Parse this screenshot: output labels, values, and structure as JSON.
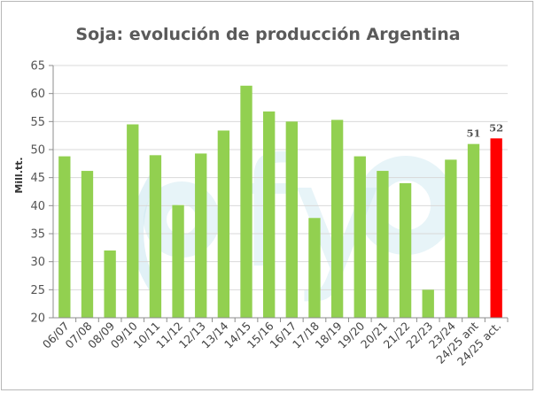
{
  "chart_data": {
    "type": "bar",
    "title": "Soja: evolución de producción Argentina",
    "ylabel": "Mill.tt.",
    "xlabel": "",
    "ylim": [
      20,
      65
    ],
    "yticks": [
      20,
      25,
      30,
      35,
      40,
      45,
      50,
      55,
      60,
      65
    ],
    "grid": true,
    "legend": "none",
    "watermark": "OFyO",
    "categories": [
      "06/07",
      "07/08",
      "08/09",
      "09/10",
      "10/11",
      "11/12",
      "12/13",
      "13/14",
      "14/15",
      "15/16",
      "16/17",
      "17/18",
      "18/19",
      "19/20",
      "20/21",
      "21/22",
      "22/23",
      "23/24",
      "24/25 ant",
      "24/25 act."
    ],
    "values": [
      48.8,
      46.2,
      32.0,
      54.5,
      49.0,
      40.1,
      49.3,
      53.4,
      61.4,
      56.8,
      55.0,
      37.8,
      55.3,
      48.8,
      46.2,
      44.0,
      25.0,
      48.2,
      51.0,
      52.0
    ],
    "data_labels": [
      {
        "index": 18,
        "text": "51"
      },
      {
        "index": 19,
        "text": "52"
      }
    ],
    "colors": {
      "bar": "#92d050",
      "highlight": "#ff0000",
      "grid": "#d9d9d9",
      "axis": "#8c8c8c",
      "watermark": "#c9e6ef"
    },
    "highlight_index": 19
  }
}
